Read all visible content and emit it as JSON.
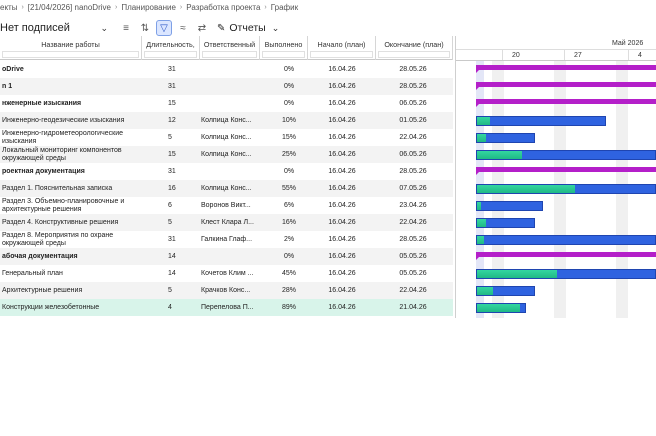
{
  "breadcrumb": [
    {
      "label": "екты"
    },
    {
      "label": "[21/04/2026] nanoDrive"
    },
    {
      "label": "Планирование"
    },
    {
      "label": "Разработка проекта"
    },
    {
      "label": "График"
    }
  ],
  "toolbar": {
    "view_select": "Нет подписей",
    "reports_label": "Отчеты"
  },
  "columns": {
    "name": "Название работы",
    "duration": "Длительность,",
    "responsible": "Ответственный",
    "percent": "Выполнено",
    "start": "Начало (план)",
    "end": "Окончание (план)"
  },
  "timeline": {
    "month_label": "Май 2026",
    "days": [
      "20",
      "27",
      "4"
    ]
  },
  "rows": [
    {
      "name": "oDrive",
      "bold": true,
      "duration": "31",
      "responsible": "",
      "percent": "0%",
      "start": "16.04.26",
      "end": "28.05.26",
      "type": "summary",
      "bar_start": 0.0,
      "bar_len": 1.0,
      "progress": 0.0
    },
    {
      "name": "n 1",
      "bold": true,
      "duration": "31",
      "responsible": "",
      "percent": "0%",
      "start": "16.04.26",
      "end": "28.05.26",
      "type": "summary",
      "bar_start": 0.0,
      "bar_len": 1.0,
      "progress": 0.0
    },
    {
      "name": "нженерные изыскания",
      "bold": true,
      "duration": "15",
      "responsible": "",
      "percent": "0%",
      "start": "16.04.26",
      "end": "06.05.26",
      "type": "summary",
      "bar_start": 0.0,
      "bar_len": 1.0,
      "progress": 0.0
    },
    {
      "name": "Инженерно-геодезические изыскания",
      "bold": false,
      "duration": "12",
      "responsible": "Колпица Конс...",
      "percent": "10%",
      "start": "16.04.26",
      "end": "01.05.26",
      "type": "task",
      "bar_start": 0.0,
      "bar_len": 0.72,
      "progress": 0.1
    },
    {
      "name": "Инженерно-гидрометеорологические изыскания",
      "bold": false,
      "duration": "5",
      "responsible": "Колпица Конс...",
      "percent": "15%",
      "start": "16.04.26",
      "end": "22.04.26",
      "type": "task",
      "bar_start": 0.0,
      "bar_len": 0.33,
      "progress": 0.15
    },
    {
      "name": "Локальный мониторинг компонентов окружающей среды",
      "bold": false,
      "duration": "15",
      "responsible": "Колпица Конс...",
      "percent": "25%",
      "start": "16.04.26",
      "end": "06.05.26",
      "type": "task",
      "bar_start": 0.0,
      "bar_len": 1.0,
      "progress": 0.25
    },
    {
      "name": "роектная документация",
      "bold": true,
      "duration": "31",
      "responsible": "",
      "percent": "0%",
      "start": "16.04.26",
      "end": "28.05.26",
      "type": "summary",
      "bar_start": 0.0,
      "bar_len": 1.0,
      "progress": 0.0
    },
    {
      "name": "Раздел 1. Пояснительная записка",
      "bold": false,
      "duration": "16",
      "responsible": "Колпица Конс...",
      "percent": "55%",
      "start": "16.04.26",
      "end": "07.05.26",
      "type": "task",
      "bar_start": 0.0,
      "bar_len": 1.0,
      "progress": 0.55
    },
    {
      "name": "Раздел 3. Объемно-планировочные и архитектурные решения",
      "bold": false,
      "duration": "6",
      "responsible": "Воронов Викт...",
      "percent": "6%",
      "start": "16.04.26",
      "end": "23.04.26",
      "type": "task",
      "bar_start": 0.0,
      "bar_len": 0.37,
      "progress": 0.06
    },
    {
      "name": "Раздел 4. Конструктивные решения",
      "bold": false,
      "duration": "5",
      "responsible": "Клест Клара Л...",
      "percent": "16%",
      "start": "16.04.26",
      "end": "22.04.26",
      "type": "task",
      "bar_start": 0.0,
      "bar_len": 0.33,
      "progress": 0.16
    },
    {
      "name": "Раздел 8. Мероприятия по охране окружающей среды",
      "bold": false,
      "duration": "31",
      "responsible": "Галкина Глаф...",
      "percent": "2%",
      "start": "16.04.26",
      "end": "28.05.26",
      "type": "task",
      "bar_start": 0.0,
      "bar_len": 1.0,
      "progress": 0.02
    },
    {
      "name": "абочая документация",
      "bold": true,
      "duration": "14",
      "responsible": "",
      "percent": "0%",
      "start": "16.04.26",
      "end": "05.05.26",
      "type": "summary",
      "bar_start": 0.0,
      "bar_len": 1.0,
      "progress": 0.0
    },
    {
      "name": "Генеральный план",
      "bold": false,
      "duration": "14",
      "responsible": "Кочетов Клим ...",
      "percent": "45%",
      "start": "16.04.26",
      "end": "05.05.26",
      "type": "task",
      "bar_start": 0.0,
      "bar_len": 1.0,
      "progress": 0.45
    },
    {
      "name": "Архитектурные решения",
      "bold": false,
      "duration": "5",
      "responsible": "Крачков Конс...",
      "percent": "28%",
      "start": "16.04.26",
      "end": "22.04.26",
      "type": "task",
      "bar_start": 0.0,
      "bar_len": 0.33,
      "progress": 0.28
    },
    {
      "name": "Конструкции железобетонные",
      "bold": false,
      "duration": "4",
      "responsible": "Перепелова П...",
      "percent": "89%",
      "start": "16.04.26",
      "end": "21.04.26",
      "type": "task",
      "bar_start": 0.0,
      "bar_len": 0.28,
      "progress": 0.89,
      "selected": true
    }
  ]
}
